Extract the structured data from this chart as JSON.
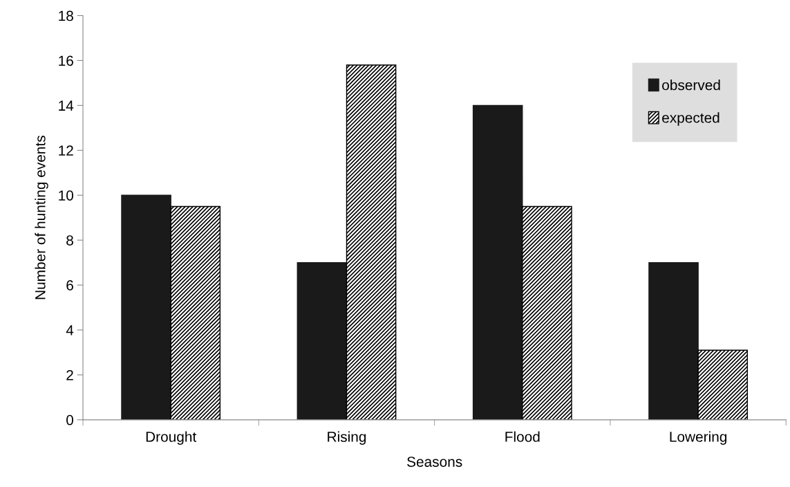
{
  "chart_data": {
    "type": "bar",
    "xlabel": "Seasons",
    "ylabel": "Number of hunting events",
    "categories": [
      "Drought",
      "Rising",
      "Flood",
      "Lowering"
    ],
    "series": [
      {
        "name": "observed",
        "color": "#1a1a1a",
        "values": [
          10,
          7,
          14,
          7
        ]
      },
      {
        "name": "expected",
        "color": "#000000",
        "values": [
          9.5,
          15.8,
          9.5,
          3.1
        ]
      }
    ],
    "ylim": [
      0,
      18
    ],
    "yticks": [
      0,
      2,
      4,
      6,
      8,
      10,
      12,
      14,
      16,
      18
    ],
    "grid": false,
    "legend": "top right"
  }
}
